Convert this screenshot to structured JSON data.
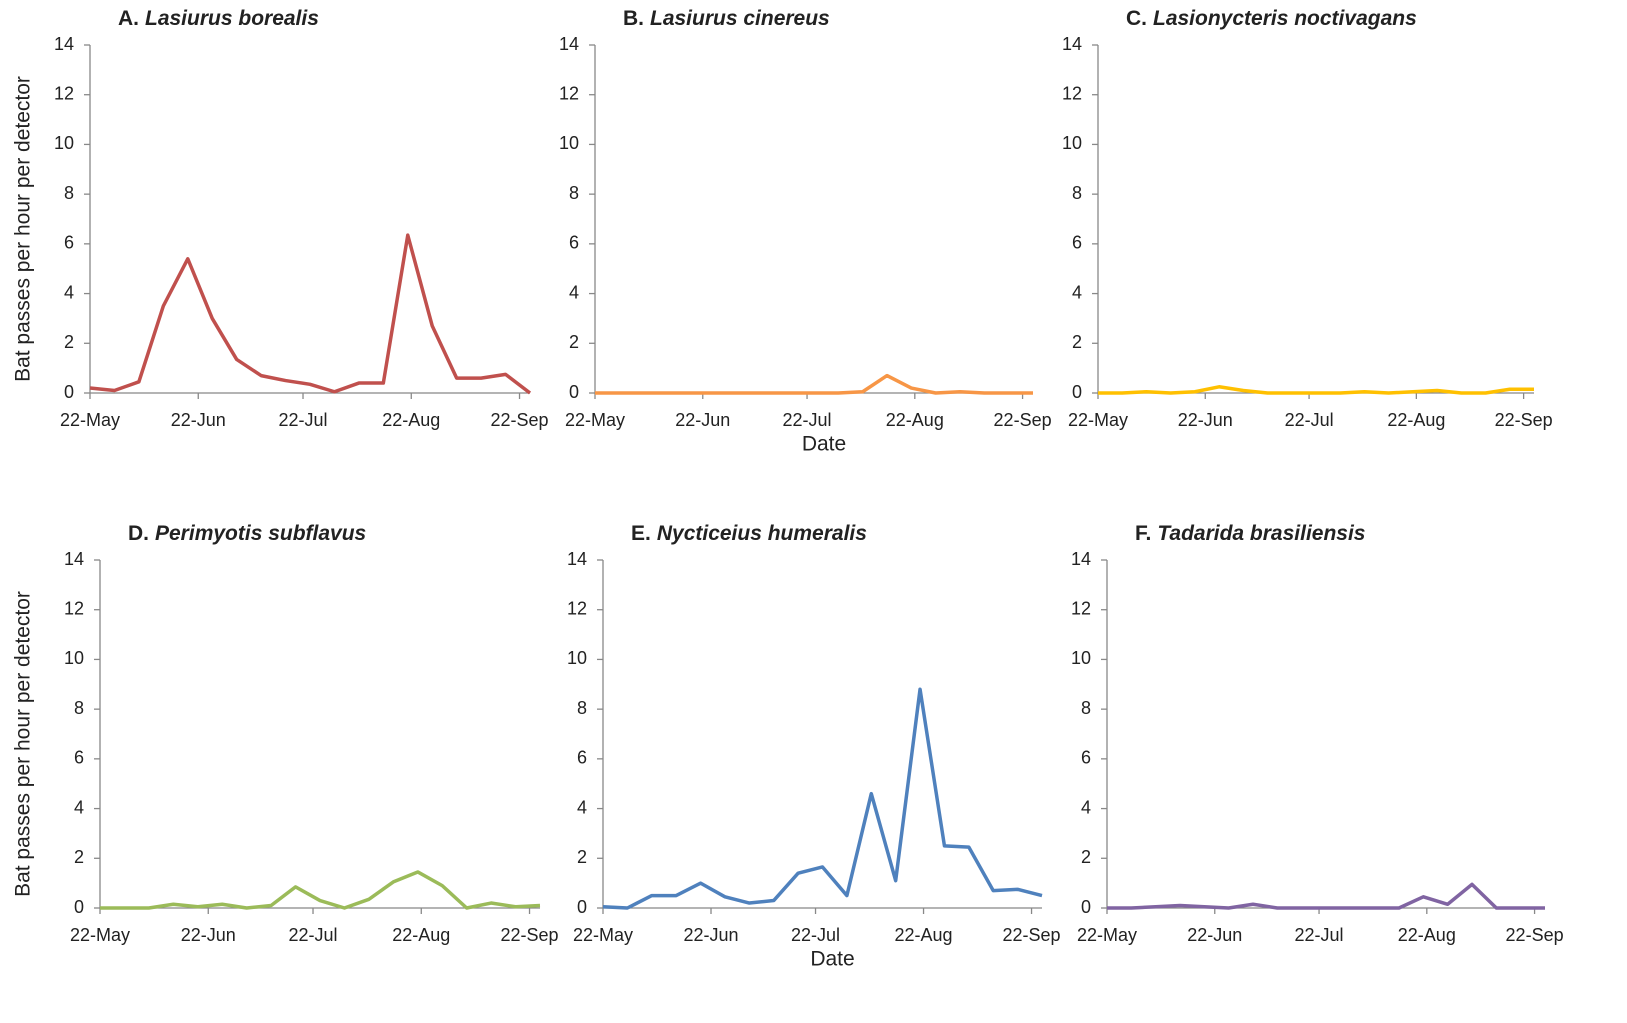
{
  "chart_data": [
    {
      "type": "line",
      "panel": "A.",
      "title": "Lasiurus borealis",
      "ylabel": "Bat passes per hour per detector",
      "x": [
        "22-May",
        "29-May",
        "5-Jun",
        "12-Jun",
        "19-Jun",
        "26-Jun",
        "3-Jul",
        "10-Jul",
        "17-Jul",
        "24-Jul",
        "31-Jul",
        "7-Aug",
        "14-Aug",
        "21-Aug",
        "28-Aug",
        "4-Sep",
        "11-Sep",
        "18-Sep",
        "25-Sep"
      ],
      "series": [
        {
          "color": "#c0504d",
          "values": [
            0.2,
            0.1,
            0.45,
            3.5,
            5.4,
            3.0,
            1.35,
            0.7,
            0.5,
            0.35,
            0.05,
            0.4,
            0.4,
            6.35,
            2.7,
            0.6,
            0.6,
            0.75,
            0
          ]
        }
      ],
      "xlim": [
        "22-May",
        "25-Sep"
      ],
      "xticks": [
        "22-May",
        "22-Jun",
        "22-Jul",
        "22-Aug",
        "22-Sep"
      ],
      "ylim": [
        0,
        14
      ],
      "yticks": [
        0,
        2,
        4,
        6,
        8,
        10,
        12,
        14
      ]
    },
    {
      "type": "line",
      "panel": "B.",
      "title": "Lasiurus cinereus",
      "xlabel": "Date",
      "x": [
        "22-May",
        "29-May",
        "5-Jun",
        "12-Jun",
        "19-Jun",
        "26-Jun",
        "3-Jul",
        "10-Jul",
        "17-Jul",
        "24-Jul",
        "31-Jul",
        "7-Aug",
        "14-Aug",
        "21-Aug",
        "28-Aug",
        "4-Sep",
        "11-Sep",
        "18-Sep",
        "25-Sep"
      ],
      "series": [
        {
          "color": "#f79646",
          "values": [
            0,
            0,
            0,
            0,
            0,
            0,
            0,
            0,
            0,
            0,
            0,
            0.05,
            0.7,
            0.2,
            0,
            0.05,
            0,
            0,
            0
          ]
        }
      ],
      "xlim": [
        "22-May",
        "25-Sep"
      ],
      "xticks": [
        "22-May",
        "22-Jun",
        "22-Jul",
        "22-Aug",
        "22-Sep"
      ],
      "ylim": [
        0,
        14
      ],
      "yticks": [
        0,
        2,
        4,
        6,
        8,
        10,
        12,
        14
      ]
    },
    {
      "type": "line",
      "panel": "C.",
      "title": "Lasionycteris noctivagans",
      "x": [
        "22-May",
        "29-May",
        "5-Jun",
        "12-Jun",
        "19-Jun",
        "26-Jun",
        "3-Jul",
        "10-Jul",
        "17-Jul",
        "24-Jul",
        "31-Jul",
        "7-Aug",
        "14-Aug",
        "21-Aug",
        "28-Aug",
        "4-Sep",
        "11-Sep",
        "18-Sep",
        "25-Sep"
      ],
      "series": [
        {
          "color": "#ffc000",
          "values": [
            0,
            0,
            0.05,
            0,
            0.05,
            0.25,
            0.1,
            0,
            0,
            0,
            0,
            0.05,
            0,
            0.05,
            0.1,
            0,
            0,
            0.15,
            0.15
          ]
        }
      ],
      "xlim": [
        "22-May",
        "25-Sep"
      ],
      "xticks": [
        "22-May",
        "22-Jun",
        "22-Jul",
        "22-Aug",
        "22-Sep"
      ],
      "ylim": [
        0,
        14
      ],
      "yticks": [
        0,
        2,
        4,
        6,
        8,
        10,
        12,
        14
      ]
    },
    {
      "type": "line",
      "panel": "D.",
      "title": "Perimyotis subflavus",
      "ylabel": "Bat passes per hour per detector",
      "x": [
        "22-May",
        "29-May",
        "5-Jun",
        "12-Jun",
        "19-Jun",
        "26-Jun",
        "3-Jul",
        "10-Jul",
        "17-Jul",
        "24-Jul",
        "31-Jul",
        "7-Aug",
        "14-Aug",
        "21-Aug",
        "28-Aug",
        "4-Sep",
        "11-Sep",
        "18-Sep",
        "25-Sep"
      ],
      "series": [
        {
          "color": "#9bbb59",
          "values": [
            0,
            0,
            0,
            0.15,
            0.05,
            0.15,
            0,
            0.1,
            0.85,
            0.3,
            0,
            0.35,
            1.05,
            1.45,
            0.9,
            0,
            0.2,
            0.05,
            0.1
          ]
        }
      ],
      "xlim": [
        "22-May",
        "25-Sep"
      ],
      "xticks": [
        "22-May",
        "22-Jun",
        "22-Jul",
        "22-Aug",
        "22-Sep"
      ],
      "ylim": [
        0,
        14
      ],
      "yticks": [
        0,
        2,
        4,
        6,
        8,
        10,
        12,
        14
      ]
    },
    {
      "type": "line",
      "panel": "E.",
      "title": "Nycticeius humeralis",
      "xlabel": "Date",
      "x": [
        "22-May",
        "29-May",
        "5-Jun",
        "12-Jun",
        "19-Jun",
        "26-Jun",
        "3-Jul",
        "10-Jul",
        "17-Jul",
        "24-Jul",
        "31-Jul",
        "7-Aug",
        "14-Aug",
        "21-Aug",
        "28-Aug",
        "4-Sep",
        "11-Sep",
        "18-Sep",
        "25-Sep"
      ],
      "series": [
        {
          "color": "#4f81bd",
          "values": [
            0.05,
            0,
            0.5,
            0.5,
            1.0,
            0.45,
            0.2,
            0.3,
            1.4,
            1.65,
            0.5,
            4.6,
            1.1,
            8.8,
            2.5,
            2.45,
            0.7,
            0.75,
            0.5
          ]
        }
      ],
      "xlim": [
        "22-May",
        "25-Sep"
      ],
      "xticks": [
        "22-May",
        "22-Jun",
        "22-Jul",
        "22-Aug",
        "22-Sep"
      ],
      "ylim": [
        0,
        14
      ],
      "yticks": [
        0,
        2,
        4,
        6,
        8,
        10,
        12,
        14
      ]
    },
    {
      "type": "line",
      "panel": "F.",
      "title": "Tadarida brasiliensis",
      "x": [
        "22-May",
        "29-May",
        "5-Jun",
        "12-Jun",
        "19-Jun",
        "26-Jun",
        "3-Jul",
        "10-Jul",
        "17-Jul",
        "24-Jul",
        "31-Jul",
        "7-Aug",
        "14-Aug",
        "21-Aug",
        "28-Aug",
        "4-Sep",
        "11-Sep",
        "18-Sep",
        "25-Sep"
      ],
      "series": [
        {
          "color": "#8064a2",
          "values": [
            0,
            0,
            0.05,
            0.1,
            0.05,
            0,
            0.15,
            0,
            0,
            0,
            0,
            0,
            0,
            0.45,
            0.15,
            0.95,
            0,
            0,
            0
          ]
        }
      ],
      "xlim": [
        "22-May",
        "25-Sep"
      ],
      "xticks": [
        "22-May",
        "22-Jun",
        "22-Jul",
        "22-Aug",
        "22-Sep"
      ],
      "ylim": [
        0,
        14
      ],
      "yticks": [
        0,
        2,
        4,
        6,
        8,
        10,
        12,
        14
      ]
    }
  ]
}
